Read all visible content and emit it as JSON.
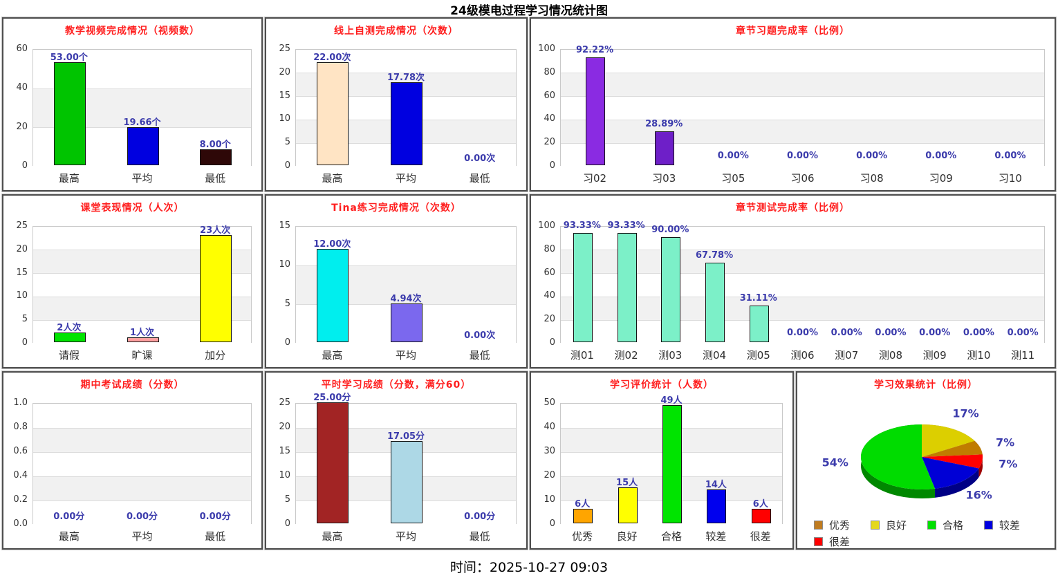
{
  "page": {
    "title": "24级模电过程学习情况统计图",
    "timestamp": "时间：2025-10-27 09:03"
  },
  "style_colors": {
    "panel_title": "#ff1e1e",
    "value_label": "#3c3cac",
    "stripe_gray": "#f1f1f1"
  },
  "chart_data": [
    {
      "id": "teaching-videos",
      "type": "bar",
      "title": "教学视频完成情况（视频数）",
      "categories": [
        "最高",
        "平均",
        "最低"
      ],
      "values": [
        53,
        19.66,
        8
      ],
      "value_labels": [
        "53.00个",
        "19.66个",
        "8.00个"
      ],
      "bar_colors": [
        "#00c400",
        "#0000e0",
        "#2e0808"
      ],
      "ymax": 60,
      "yticks": [
        0,
        20,
        40,
        60
      ],
      "ytick_labels": [
        "0",
        "20",
        "40",
        "60"
      ]
    },
    {
      "id": "online-selftest",
      "type": "bar",
      "title": "线上自测完成情况（次数）",
      "categories": [
        "最高",
        "平均",
        "最低"
      ],
      "values": [
        22,
        17.78,
        0
      ],
      "value_labels": [
        "22.00次",
        "17.78次",
        "0.00次"
      ],
      "bar_colors": [
        "#ffe4c4",
        "#0000e0",
        "#888888"
      ],
      "ymax": 25,
      "yticks": [
        0,
        5,
        10,
        15,
        20,
        25
      ],
      "ytick_labels": [
        "0",
        "5",
        "10",
        "15",
        "20",
        "25"
      ]
    },
    {
      "id": "chapter-exercises",
      "type": "bar",
      "title": "章节习题完成率（比例）",
      "categories": [
        "习02",
        "习03",
        "习05",
        "习06",
        "习08",
        "习09",
        "习10"
      ],
      "values": [
        92.22,
        28.89,
        0,
        0,
        0,
        0,
        0
      ],
      "value_labels": [
        "92.22%",
        "28.89%",
        "0.00%",
        "0.00%",
        "0.00%",
        "0.00%",
        "0.00%"
      ],
      "bar_colors": [
        "#8a2be2",
        "#6e1fc8",
        "#888888",
        "#888888",
        "#888888",
        "#888888",
        "#888888"
      ],
      "ymax": 100,
      "yticks": [
        0,
        20,
        40,
        60,
        80,
        100
      ],
      "ytick_labels": [
        "0",
        "20",
        "40",
        "60",
        "80",
        "100"
      ]
    },
    {
      "id": "class-performance",
      "type": "bar",
      "title": "课堂表现情况（人次）",
      "categories": [
        "请假",
        "旷课",
        "加分"
      ],
      "values": [
        2,
        1,
        23
      ],
      "value_labels": [
        "2人次",
        "1人次",
        "23人次"
      ],
      "bar_colors": [
        "#00e400",
        "#ffa0a0",
        "#ffff00"
      ],
      "ymax": 25,
      "yticks": [
        0,
        5,
        10,
        15,
        20,
        25
      ],
      "ytick_labels": [
        "0",
        "5",
        "10",
        "15",
        "20",
        "25"
      ]
    },
    {
      "id": "tina-practice",
      "type": "bar",
      "title": "Tina练习完成情况（次数）",
      "categories": [
        "最高",
        "平均",
        "最低"
      ],
      "values": [
        12,
        4.94,
        0
      ],
      "value_labels": [
        "12.00次",
        "4.94次",
        "0.00次"
      ],
      "bar_colors": [
        "#00eeee",
        "#7b68ee",
        "#888888"
      ],
      "ymax": 15,
      "yticks": [
        0,
        5,
        10,
        15
      ],
      "ytick_labels": [
        "0",
        "5",
        "10",
        "15"
      ]
    },
    {
      "id": "chapter-tests",
      "type": "bar",
      "title": "章节测试完成率（比例）",
      "categories": [
        "测01",
        "测02",
        "测03",
        "测04",
        "测05",
        "测06",
        "测07",
        "测08",
        "测09",
        "测10",
        "测11"
      ],
      "values": [
        93.33,
        93.33,
        90.0,
        67.78,
        31.11,
        0,
        0,
        0,
        0,
        0,
        0
      ],
      "value_labels": [
        "93.33%",
        "93.33%",
        "90.00%",
        "67.78%",
        "31.11%",
        "0.00%",
        "0.00%",
        "0.00%",
        "0.00%",
        "0.00%",
        "0.00%"
      ],
      "bar_colors": [
        "#7cf0c8",
        "#7cf0c8",
        "#7cf0c8",
        "#7cf0c8",
        "#7cf0c8",
        "#888888",
        "#888888",
        "#888888",
        "#888888",
        "#888888",
        "#888888"
      ],
      "ymax": 100,
      "yticks": [
        0,
        20,
        40,
        60,
        80,
        100
      ],
      "ytick_labels": [
        "0",
        "20",
        "40",
        "60",
        "80",
        "100"
      ]
    },
    {
      "id": "midterm-exam",
      "type": "bar",
      "title": "期中考试成绩（分数）",
      "categories": [
        "最高",
        "平均",
        "最低"
      ],
      "values": [
        0,
        0,
        0
      ],
      "value_labels": [
        "0.00分",
        "0.00分",
        "0.00分"
      ],
      "bar_colors": [
        "#888888",
        "#888888",
        "#888888"
      ],
      "ymax": 1.0,
      "yticks": [
        0,
        0.2,
        0.4,
        0.6,
        0.8,
        1.0
      ],
      "ytick_labels": [
        "0.0",
        "0.2",
        "0.4",
        "0.6",
        "0.8",
        "1.0"
      ]
    },
    {
      "id": "regular-study-score",
      "type": "bar",
      "title": "平时学习成绩（分数，满分60）",
      "categories": [
        "最高",
        "平均",
        "最低"
      ],
      "values": [
        25,
        17.05,
        0
      ],
      "value_labels": [
        "25.00分",
        "17.05分",
        "0.00分"
      ],
      "bar_colors": [
        "#a22424",
        "#add8e6",
        "#888888"
      ],
      "ymax": 25,
      "yticks": [
        0,
        5,
        10,
        15,
        20,
        25
      ],
      "ytick_labels": [
        "0",
        "5",
        "10",
        "15",
        "20",
        "25"
      ]
    },
    {
      "id": "evaluation-stats",
      "type": "bar",
      "title": "学习评价统计（人数）",
      "categories": [
        "优秀",
        "良好",
        "合格",
        "较差",
        "很差"
      ],
      "values": [
        6,
        15,
        49,
        14,
        6
      ],
      "value_labels": [
        "6人",
        "15人",
        "49人",
        "14人",
        "6人"
      ],
      "bar_colors": [
        "#ffa500",
        "#ffff00",
        "#00e400",
        "#0000ee",
        "#ff0000"
      ],
      "ymax": 50,
      "yticks": [
        0,
        10,
        20,
        30,
        40,
        50
      ],
      "ytick_labels": [
        "0",
        "10",
        "20",
        "30",
        "40",
        "50"
      ]
    },
    {
      "id": "effect-stats",
      "type": "pie",
      "title": "学习效果统计（比例）",
      "slices": [
        {
          "label": "良好",
          "pct": 17,
          "pct_label": "17%",
          "color": "#dccf00"
        },
        {
          "label": "优秀",
          "pct": 7,
          "pct_label": "7%",
          "color": "#c07c00"
        },
        {
          "label": "很差",
          "pct": 7,
          "pct_label": "7%",
          "color": "#ff0000"
        },
        {
          "label": "较差",
          "pct": 16,
          "pct_label": "16%",
          "color": "#0000d6"
        },
        {
          "label": "合格",
          "pct": 54,
          "pct_label": "54%",
          "color": "#00dc00"
        }
      ],
      "legend": [
        {
          "label": "优秀",
          "color": "#c07c20"
        },
        {
          "label": "良好",
          "color": "#e4d81e"
        },
        {
          "label": "合格",
          "color": "#00e000"
        },
        {
          "label": "较差",
          "color": "#0000e0"
        },
        {
          "label": "很差",
          "color": "#ff0000"
        }
      ]
    }
  ]
}
